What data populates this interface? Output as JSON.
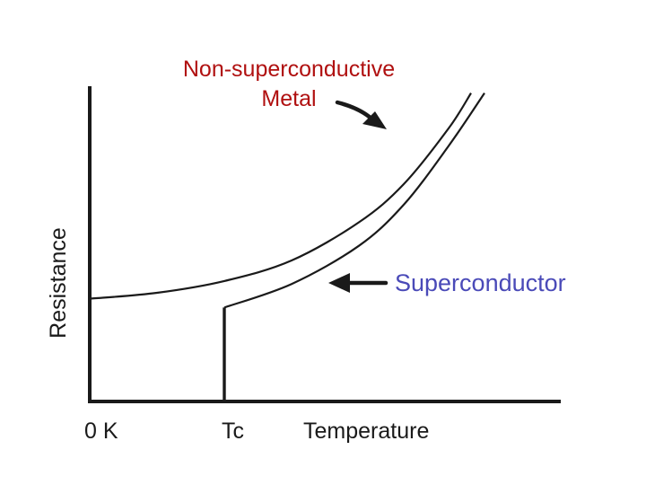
{
  "chart_data": {
    "type": "line",
    "title": "",
    "xlabel": "Temperature",
    "ylabel": "Resistance",
    "x_ticks": [
      "0 K",
      "Tc"
    ],
    "series": [
      {
        "name": "Non-superconductive Metal",
        "name_lines": [
          "Non-superconductive",
          "Metal"
        ],
        "color": "#b01010",
        "x": [
          0,
          0.15,
          0.3,
          0.45,
          0.6,
          0.7,
          0.8,
          0.85
        ],
        "y": [
          0.35,
          0.37,
          0.41,
          0.48,
          0.61,
          0.74,
          0.93,
          1.05
        ]
      },
      {
        "name": "Superconductor",
        "color": "#4a4ab8",
        "x": [
          0.3,
          0.3,
          0.45,
          0.6,
          0.7,
          0.8,
          0.88
        ],
        "y": [
          0,
          0.32,
          0.4,
          0.53,
          0.67,
          0.87,
          1.05
        ]
      }
    ],
    "xlim": [
      0,
      1
    ],
    "ylim": [
      0,
      1
    ],
    "grid": false
  }
}
